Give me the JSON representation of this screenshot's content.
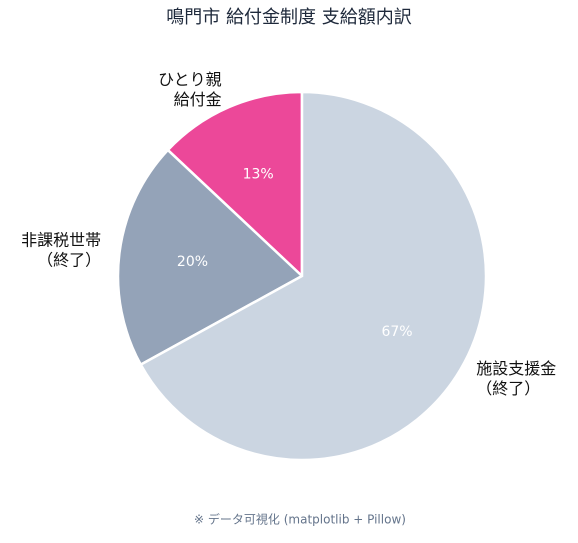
{
  "chart_data": {
    "type": "pie",
    "title": "鳴門市 給付金制度 支給額内訳",
    "categories": [
      [
        "施設支援金",
        "（終了）"
      ],
      [
        "非課税世帯",
        "（終了）"
      ],
      [
        "ひとり親",
        "給付金"
      ]
    ],
    "values": [
      67,
      20,
      13
    ],
    "value_labels": [
      "67%",
      "20%",
      "13%"
    ],
    "colors": [
      "#cbd5e1",
      "#94a3b8",
      "#ec4899"
    ],
    "footnote": "※ データ可視化 (matplotlib + Pillow)"
  }
}
